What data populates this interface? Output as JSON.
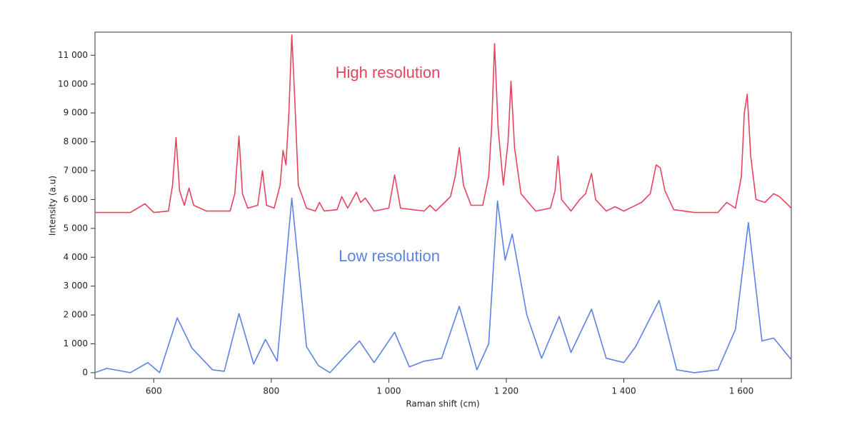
{
  "chart_data": {
    "type": "line",
    "x_label": "Raman shift (cm)",
    "y_label": "Intensity (a.u)",
    "annotations": [
      {
        "text": "High resolution",
        "color": "#e8435e"
      },
      {
        "text": "Low resolution",
        "color": "#5b82e4"
      }
    ],
    "xlim": [
      500,
      1685
    ],
    "ylim": [
      -200,
      11800
    ],
    "xticks": [
      600,
      800,
      {
        "value": 1000,
        "label": "1 000"
      },
      {
        "value": 1200,
        "label": "1 200"
      },
      {
        "value": 1400,
        "label": "1 400"
      },
      {
        "value": 1600,
        "label": "1 600"
      }
    ],
    "yticks": [
      0,
      {
        "value": 1000,
        "label": "1 000"
      },
      {
        "value": 2000,
        "label": "2 000"
      },
      {
        "value": 3000,
        "label": "3 000"
      },
      {
        "value": 4000,
        "label": "4 000"
      },
      {
        "value": 5000,
        "label": "5 000"
      },
      {
        "value": 6000,
        "label": "6 000"
      },
      {
        "value": 7000,
        "label": "7 000"
      },
      {
        "value": 8000,
        "label": "8 000"
      },
      {
        "value": 9000,
        "label": "9 000"
      },
      {
        "value": 10000,
        "label": "10 000"
      },
      {
        "value": 11000,
        "label": "11 000"
      }
    ],
    "series": [
      {
        "color": "#e8435e",
        "x": [
          500,
          560,
          585,
          600,
          625,
          632,
          638,
          644,
          652,
          660,
          668,
          690,
          730,
          738,
          745,
          751,
          760,
          777,
          785,
          792,
          805,
          815,
          820,
          825,
          830,
          835,
          840,
          846,
          860,
          875,
          882,
          890,
          912,
          920,
          930,
          945,
          952,
          960,
          975,
          1000,
          1010,
          1020,
          1060,
          1070,
          1080,
          1095,
          1105,
          1113,
          1120,
          1127,
          1140,
          1160,
          1170,
          1175,
          1180,
          1186,
          1195,
          1203,
          1208,
          1214,
          1225,
          1250,
          1275,
          1283,
          1288,
          1294,
          1310,
          1325,
          1335,
          1345,
          1352,
          1370,
          1385,
          1400,
          1430,
          1445,
          1455,
          1462,
          1470,
          1485,
          1520,
          1560,
          1575,
          1590,
          1600,
          1605,
          1610,
          1616,
          1625,
          1640,
          1655,
          1665,
          1685
        ],
        "values": [
          5550,
          5550,
          5850,
          5550,
          5600,
          6500,
          8150,
          6300,
          5800,
          6400,
          5800,
          5600,
          5600,
          6200,
          8200,
          6200,
          5700,
          5800,
          7000,
          5800,
          5700,
          6500,
          7700,
          7200,
          9000,
          11700,
          9500,
          6500,
          5700,
          5600,
          5900,
          5600,
          5650,
          6100,
          5700,
          6250,
          5900,
          6050,
          5600,
          5700,
          6850,
          5700,
          5600,
          5800,
          5600,
          5900,
          6100,
          6800,
          7800,
          6500,
          5800,
          5800,
          6800,
          8500,
          11400,
          8500,
          6500,
          8000,
          10100,
          7800,
          6200,
          5600,
          5700,
          6300,
          7500,
          6000,
          5600,
          6000,
          6200,
          6900,
          6000,
          5600,
          5750,
          5600,
          5900,
          6200,
          7200,
          7100,
          6300,
          5650,
          5550,
          5550,
          5900,
          5700,
          6800,
          9000,
          9650,
          7500,
          6000,
          5900,
          6200,
          6100,
          5700
        ]
      },
      {
        "color": "#5b82e4",
        "x": [
          500,
          520,
          560,
          590,
          610,
          640,
          665,
          700,
          720,
          745,
          770,
          790,
          810,
          835,
          860,
          880,
          900,
          920,
          950,
          975,
          1010,
          1035,
          1060,
          1090,
          1120,
          1150,
          1170,
          1185,
          1198,
          1210,
          1235,
          1260,
          1290,
          1310,
          1345,
          1370,
          1400,
          1420,
          1460,
          1490,
          1520,
          1560,
          1590,
          1612,
          1635,
          1655,
          1685
        ],
        "values": [
          0,
          150,
          0,
          350,
          0,
          1900,
          850,
          100,
          50,
          2050,
          300,
          1150,
          400,
          6050,
          900,
          250,
          0,
          450,
          1100,
          350,
          1400,
          200,
          400,
          500,
          2300,
          100,
          1000,
          5950,
          3900,
          4800,
          2000,
          500,
          1950,
          700,
          2200,
          500,
          350,
          900,
          2500,
          100,
          0,
          100,
          1500,
          5200,
          1100,
          1200,
          450
        ]
      }
    ]
  }
}
